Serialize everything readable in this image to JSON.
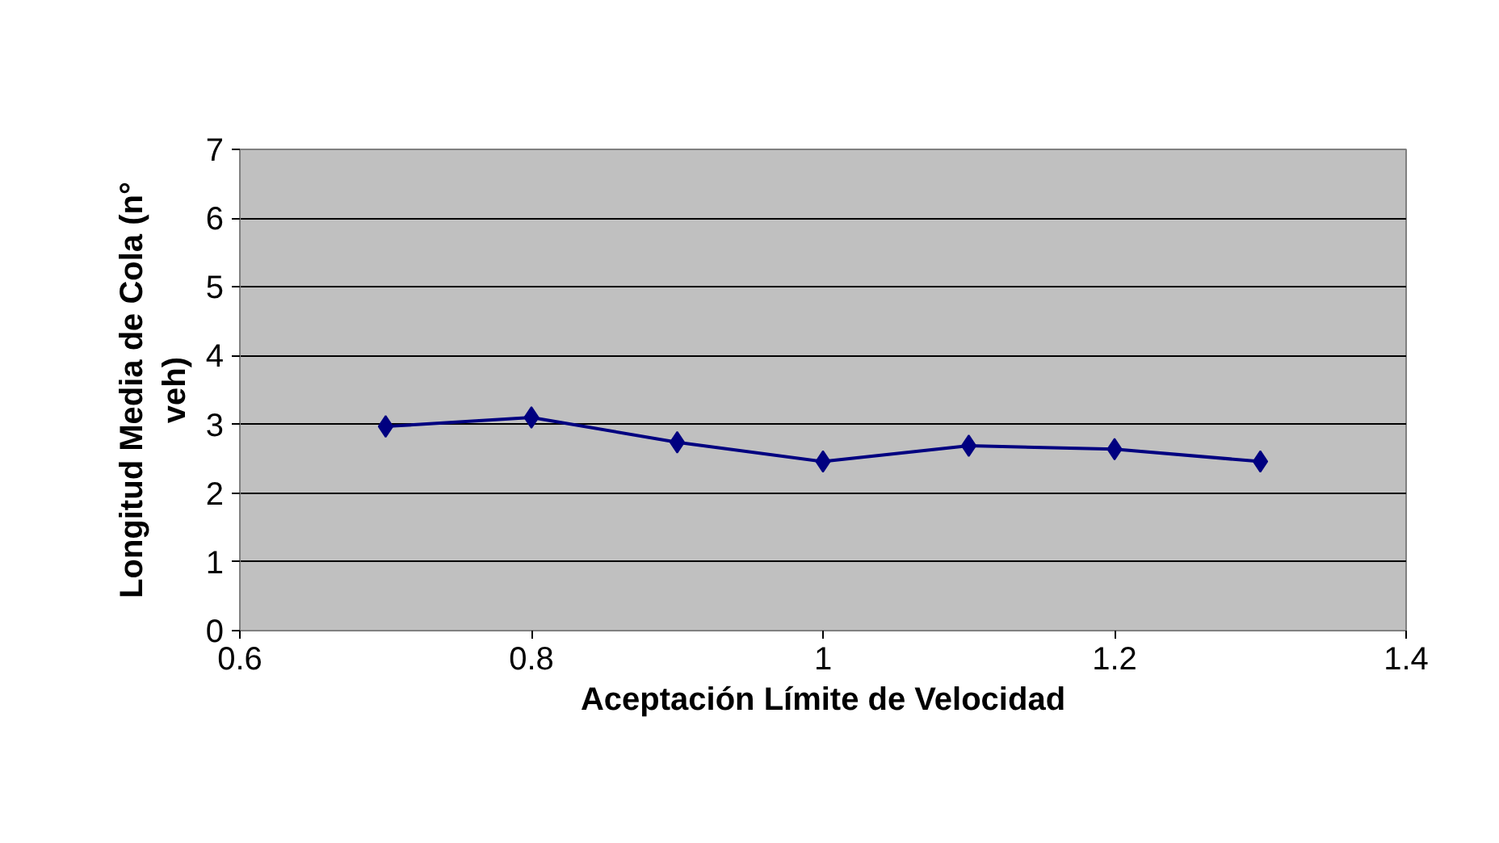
{
  "chart_data": {
    "type": "line",
    "xlabel": "Aceptación Límite de Velocidad",
    "ylabel": "Longitud Media de Cola (n° veh)",
    "x": [
      0.7,
      0.8,
      0.9,
      1.0,
      1.1,
      1.2,
      1.3
    ],
    "series": [
      {
        "color": "#000080",
        "values": [
          2.97,
          3.1,
          2.74,
          2.46,
          2.69,
          2.64,
          2.46
        ]
      }
    ],
    "xlim": [
      0.6,
      1.4
    ],
    "xticks": [
      0.6,
      0.8,
      1,
      1.2,
      1.4
    ],
    "ylim": [
      0,
      7
    ],
    "yticks": [
      0,
      1,
      2,
      3,
      4,
      5,
      6,
      7
    ],
    "grid": "y",
    "marker": "diamond"
  }
}
